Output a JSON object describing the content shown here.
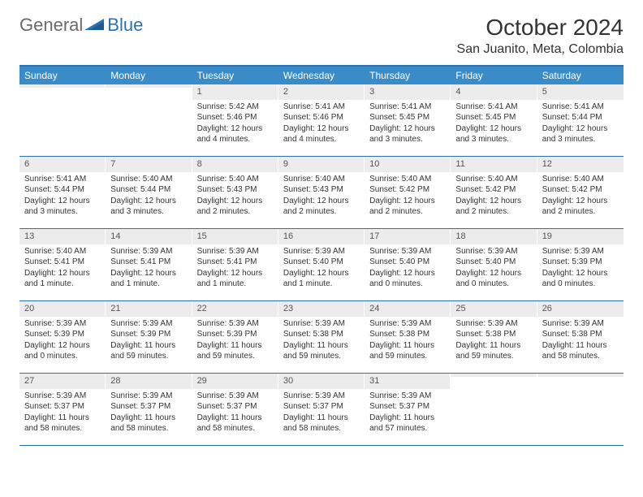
{
  "logo": {
    "text_general": "General",
    "text_blue": "Blue"
  },
  "title": "October 2024",
  "location": "San Juanito, Meta, Colombia",
  "colors": {
    "header_bar": "#3a8cc8",
    "border_top": "#2a72b5",
    "daynum_bg": "#ececec",
    "text": "#333333"
  },
  "weekdays": [
    "Sunday",
    "Monday",
    "Tuesday",
    "Wednesday",
    "Thursday",
    "Friday",
    "Saturday"
  ],
  "weeks": [
    [
      {
        "n": "",
        "sr": "",
        "ss": "",
        "dl": ""
      },
      {
        "n": "",
        "sr": "",
        "ss": "",
        "dl": ""
      },
      {
        "n": "1",
        "sr": "Sunrise: 5:42 AM",
        "ss": "Sunset: 5:46 PM",
        "dl": "Daylight: 12 hours and 4 minutes."
      },
      {
        "n": "2",
        "sr": "Sunrise: 5:41 AM",
        "ss": "Sunset: 5:46 PM",
        "dl": "Daylight: 12 hours and 4 minutes."
      },
      {
        "n": "3",
        "sr": "Sunrise: 5:41 AM",
        "ss": "Sunset: 5:45 PM",
        "dl": "Daylight: 12 hours and 3 minutes."
      },
      {
        "n": "4",
        "sr": "Sunrise: 5:41 AM",
        "ss": "Sunset: 5:45 PM",
        "dl": "Daylight: 12 hours and 3 minutes."
      },
      {
        "n": "5",
        "sr": "Sunrise: 5:41 AM",
        "ss": "Sunset: 5:44 PM",
        "dl": "Daylight: 12 hours and 3 minutes."
      }
    ],
    [
      {
        "n": "6",
        "sr": "Sunrise: 5:41 AM",
        "ss": "Sunset: 5:44 PM",
        "dl": "Daylight: 12 hours and 3 minutes."
      },
      {
        "n": "7",
        "sr": "Sunrise: 5:40 AM",
        "ss": "Sunset: 5:44 PM",
        "dl": "Daylight: 12 hours and 3 minutes."
      },
      {
        "n": "8",
        "sr": "Sunrise: 5:40 AM",
        "ss": "Sunset: 5:43 PM",
        "dl": "Daylight: 12 hours and 2 minutes."
      },
      {
        "n": "9",
        "sr": "Sunrise: 5:40 AM",
        "ss": "Sunset: 5:43 PM",
        "dl": "Daylight: 12 hours and 2 minutes."
      },
      {
        "n": "10",
        "sr": "Sunrise: 5:40 AM",
        "ss": "Sunset: 5:42 PM",
        "dl": "Daylight: 12 hours and 2 minutes."
      },
      {
        "n": "11",
        "sr": "Sunrise: 5:40 AM",
        "ss": "Sunset: 5:42 PM",
        "dl": "Daylight: 12 hours and 2 minutes."
      },
      {
        "n": "12",
        "sr": "Sunrise: 5:40 AM",
        "ss": "Sunset: 5:42 PM",
        "dl": "Daylight: 12 hours and 2 minutes."
      }
    ],
    [
      {
        "n": "13",
        "sr": "Sunrise: 5:40 AM",
        "ss": "Sunset: 5:41 PM",
        "dl": "Daylight: 12 hours and 1 minute."
      },
      {
        "n": "14",
        "sr": "Sunrise: 5:39 AM",
        "ss": "Sunset: 5:41 PM",
        "dl": "Daylight: 12 hours and 1 minute."
      },
      {
        "n": "15",
        "sr": "Sunrise: 5:39 AM",
        "ss": "Sunset: 5:41 PM",
        "dl": "Daylight: 12 hours and 1 minute."
      },
      {
        "n": "16",
        "sr": "Sunrise: 5:39 AM",
        "ss": "Sunset: 5:40 PM",
        "dl": "Daylight: 12 hours and 1 minute."
      },
      {
        "n": "17",
        "sr": "Sunrise: 5:39 AM",
        "ss": "Sunset: 5:40 PM",
        "dl": "Daylight: 12 hours and 0 minutes."
      },
      {
        "n": "18",
        "sr": "Sunrise: 5:39 AM",
        "ss": "Sunset: 5:40 PM",
        "dl": "Daylight: 12 hours and 0 minutes."
      },
      {
        "n": "19",
        "sr": "Sunrise: 5:39 AM",
        "ss": "Sunset: 5:39 PM",
        "dl": "Daylight: 12 hours and 0 minutes."
      }
    ],
    [
      {
        "n": "20",
        "sr": "Sunrise: 5:39 AM",
        "ss": "Sunset: 5:39 PM",
        "dl": "Daylight: 12 hours and 0 minutes."
      },
      {
        "n": "21",
        "sr": "Sunrise: 5:39 AM",
        "ss": "Sunset: 5:39 PM",
        "dl": "Daylight: 11 hours and 59 minutes."
      },
      {
        "n": "22",
        "sr": "Sunrise: 5:39 AM",
        "ss": "Sunset: 5:39 PM",
        "dl": "Daylight: 11 hours and 59 minutes."
      },
      {
        "n": "23",
        "sr": "Sunrise: 5:39 AM",
        "ss": "Sunset: 5:38 PM",
        "dl": "Daylight: 11 hours and 59 minutes."
      },
      {
        "n": "24",
        "sr": "Sunrise: 5:39 AM",
        "ss": "Sunset: 5:38 PM",
        "dl": "Daylight: 11 hours and 59 minutes."
      },
      {
        "n": "25",
        "sr": "Sunrise: 5:39 AM",
        "ss": "Sunset: 5:38 PM",
        "dl": "Daylight: 11 hours and 59 minutes."
      },
      {
        "n": "26",
        "sr": "Sunrise: 5:39 AM",
        "ss": "Sunset: 5:38 PM",
        "dl": "Daylight: 11 hours and 58 minutes."
      }
    ],
    [
      {
        "n": "27",
        "sr": "Sunrise: 5:39 AM",
        "ss": "Sunset: 5:37 PM",
        "dl": "Daylight: 11 hours and 58 minutes."
      },
      {
        "n": "28",
        "sr": "Sunrise: 5:39 AM",
        "ss": "Sunset: 5:37 PM",
        "dl": "Daylight: 11 hours and 58 minutes."
      },
      {
        "n": "29",
        "sr": "Sunrise: 5:39 AM",
        "ss": "Sunset: 5:37 PM",
        "dl": "Daylight: 11 hours and 58 minutes."
      },
      {
        "n": "30",
        "sr": "Sunrise: 5:39 AM",
        "ss": "Sunset: 5:37 PM",
        "dl": "Daylight: 11 hours and 58 minutes."
      },
      {
        "n": "31",
        "sr": "Sunrise: 5:39 AM",
        "ss": "Sunset: 5:37 PM",
        "dl": "Daylight: 11 hours and 57 minutes."
      },
      {
        "n": "",
        "sr": "",
        "ss": "",
        "dl": ""
      },
      {
        "n": "",
        "sr": "",
        "ss": "",
        "dl": ""
      }
    ]
  ]
}
